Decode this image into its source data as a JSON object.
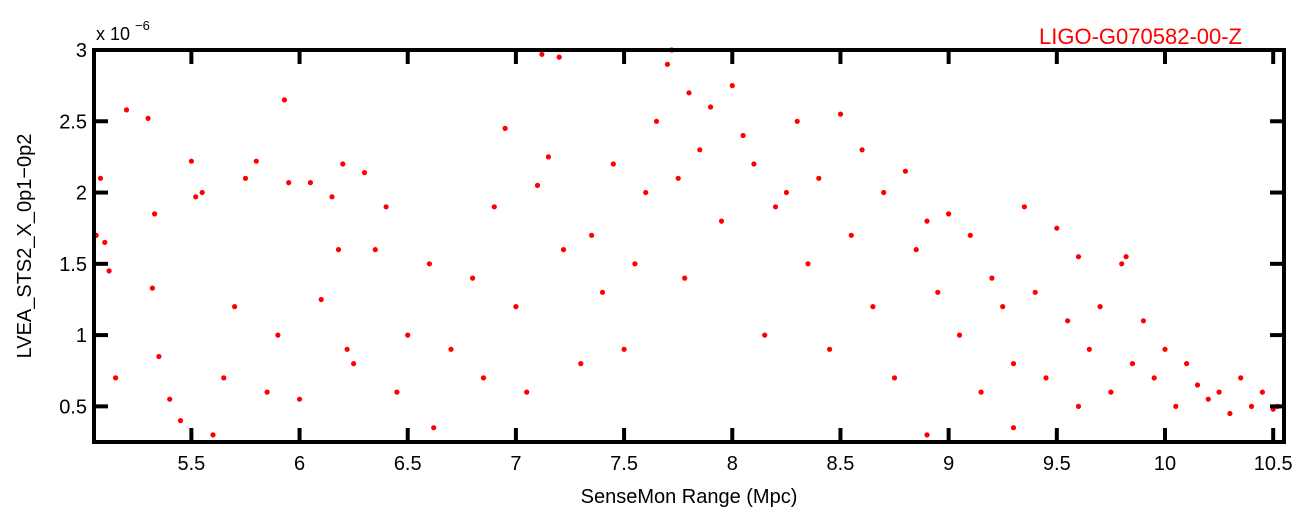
{
  "document_id": "LIGO-G070582-00-Z",
  "colors": {
    "points": "#ff0000",
    "doc_id": "#ff0000",
    "axes": "#000000"
  },
  "chart_data": {
    "type": "scatter",
    "title": "",
    "xlabel": "SenseMon Range (Mpc)",
    "ylabel": "LVEA_STS2_X_0p1−0p2",
    "y_multiplier": {
      "base": "x 10",
      "exponent": "−6"
    },
    "xlim": [
      5.05,
      10.55
    ],
    "ylim": [
      0.25,
      3.0
    ],
    "x_ticks": [
      5.5,
      6,
      6.5,
      7,
      7.5,
      8,
      8.5,
      9,
      9.5,
      10,
      10.5
    ],
    "x_tick_labels": [
      "5.5",
      "6",
      "6.5",
      "7",
      "7.5",
      "8",
      "8.5",
      "9",
      "9.5",
      "10",
      "10.5"
    ],
    "y_ticks": [
      0.5,
      1,
      1.5,
      2,
      2.5,
      3
    ],
    "y_tick_labels": [
      "0.5",
      "1",
      "1.5",
      "2",
      "2.5",
      "3"
    ],
    "grid": false,
    "marker": "filled circle",
    "series": [
      {
        "x": [
          5.06,
          5.08,
          5.1,
          5.12,
          5.15,
          5.2,
          5.3,
          5.33,
          5.32,
          5.35,
          5.5,
          5.52,
          5.55,
          5.93,
          5.8,
          5.75,
          5.95,
          6.05,
          6.15,
          6.2,
          6.18,
          6.22,
          6.3,
          6.35,
          6.4,
          5.4,
          5.45,
          5.6,
          5.65,
          5.7,
          5.85,
          5.9,
          6.0,
          6.1,
          6.25,
          6.45,
          6.5,
          6.6,
          6.62,
          6.7,
          6.8,
          6.85,
          6.9,
          6.95,
          7.0,
          7.05,
          7.1,
          7.12,
          7.15,
          7.2,
          7.22,
          7.3,
          7.35,
          7.4,
          7.45,
          7.5,
          7.55,
          7.6,
          7.65,
          7.7,
          7.72,
          7.75,
          7.78,
          7.8,
          7.85,
          7.9,
          7.95,
          8.0,
          8.05,
          8.1,
          8.15,
          8.2,
          8.25,
          8.3,
          8.35,
          8.4,
          8.45,
          8.5,
          8.55,
          8.6,
          8.65,
          8.7,
          8.75,
          8.8,
          8.85,
          8.9,
          8.95,
          9.0,
          9.05,
          9.1,
          9.15,
          9.2,
          9.25,
          9.3,
          9.35,
          9.4,
          9.45,
          9.5,
          9.55,
          9.6,
          9.65,
          9.7,
          9.75,
          9.8,
          9.85,
          9.9,
          9.95,
          10.0,
          10.05,
          10.1,
          10.15,
          10.2,
          10.25,
          10.3,
          10.35,
          10.4,
          10.45,
          10.5,
          10.52,
          9.82,
          9.6,
          9.3,
          8.9
        ],
        "y": [
          1.7,
          2.1,
          1.65,
          1.45,
          0.7,
          2.58,
          2.52,
          1.85,
          1.33,
          0.85,
          2.22,
          1.97,
          2.0,
          2.65,
          2.22,
          2.1,
          2.07,
          2.07,
          1.97,
          2.2,
          1.6,
          0.9,
          2.14,
          1.6,
          1.9,
          0.55,
          0.4,
          0.3,
          0.7,
          1.2,
          0.6,
          1.0,
          0.55,
          1.25,
          0.8,
          0.6,
          1.0,
          1.5,
          0.35,
          0.9,
          1.4,
          0.7,
          1.9,
          2.45,
          1.2,
          0.6,
          2.05,
          2.97,
          2.25,
          2.95,
          1.6,
          0.8,
          1.7,
          1.3,
          2.2,
          0.9,
          1.5,
          2.0,
          2.5,
          2.9,
          3.0,
          2.1,
          1.4,
          2.7,
          2.3,
          2.6,
          1.8,
          2.75,
          2.4,
          2.2,
          1.0,
          1.9,
          2.0,
          2.5,
          1.5,
          2.1,
          0.9,
          2.55,
          1.7,
          2.3,
          1.2,
          2.0,
          0.7,
          2.15,
          1.6,
          1.8,
          1.3,
          1.85,
          1.0,
          1.7,
          0.6,
          1.4,
          1.2,
          0.8,
          1.9,
          1.3,
          0.7,
          1.75,
          1.1,
          1.55,
          0.9,
          1.2,
          0.6,
          1.5,
          0.8,
          1.1,
          0.7,
          0.9,
          0.5,
          0.8,
          0.65,
          0.55,
          0.6,
          0.45,
          0.7,
          0.5,
          0.6,
          0.48,
          0.5,
          1.55,
          0.5,
          0.35,
          0.3
        ]
      }
    ]
  }
}
